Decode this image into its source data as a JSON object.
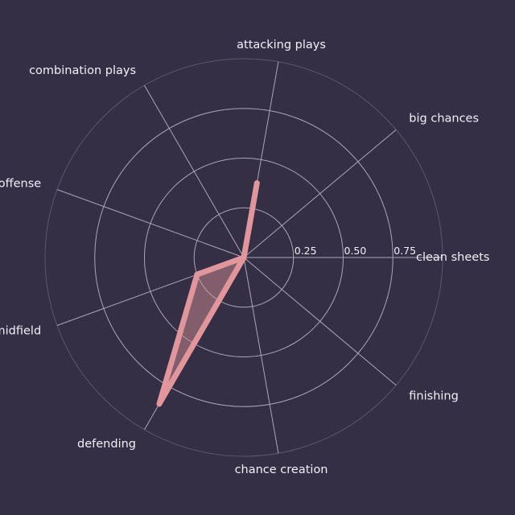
{
  "chart_data": {
    "type": "radar",
    "axes": [
      "clean sheets",
      "big chances",
      "attacking plays",
      "combination plays",
      "offense",
      "midfield",
      "defending",
      "chance creation",
      "finishing"
    ],
    "series": [
      {
        "values": [
          0.0,
          0.0,
          0.38,
          0.0,
          0.0,
          0.25,
          0.85,
          0.0,
          0.0
        ],
        "color": "#e0969a"
      }
    ],
    "radial_ticks": [
      0.25,
      0.5,
      0.75
    ],
    "radial_tick_labels": [
      "0.25",
      "0.50",
      "0.75"
    ],
    "rmax": 1.0,
    "start_angle_deg": 0,
    "direction": "counterclockwise",
    "grid": true
  },
  "colors": {
    "background": "#352f45",
    "grid": "#a9a6b6",
    "outer_ring": "#5a5670",
    "text": "#f2f0f7"
  }
}
